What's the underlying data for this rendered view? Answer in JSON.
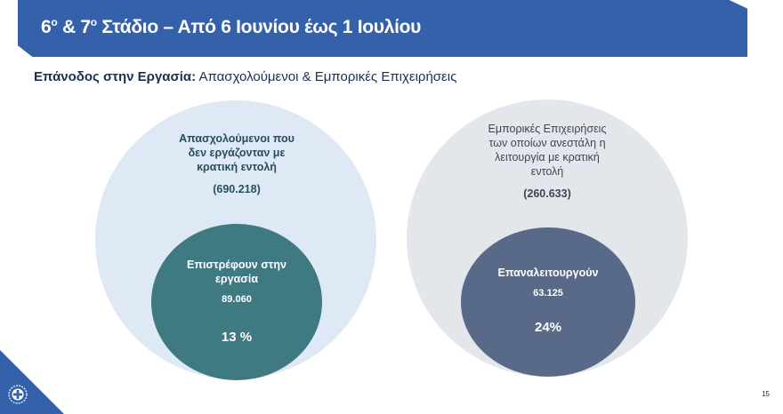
{
  "header": {
    "title_prefix_1": "6",
    "sup_1": "ο",
    "title_mid": " & 7",
    "sup_2": "ο",
    "title_rest": " Στάδιο – Από 6 Ιουνίου έως 1 Ιουλίου"
  },
  "subtitle": {
    "bold": "Επάνοδος στην Εργασία:",
    "rest": " Απασχολούμενοι & Εμπορικές Επιχειρήσεις"
  },
  "left": {
    "outer_lines": [
      "Απασχολούμενοι που",
      "δεν εργάζονταν με",
      "κρατική εντολή"
    ],
    "outer_value": "(690.218)",
    "inner_lines": [
      "Επιστρέφουν στην",
      "εργασία"
    ],
    "inner_value": "89.060",
    "inner_percent": "13 %"
  },
  "right": {
    "outer_lines": [
      "Εμπορικές Επιχειρήσεις",
      "των οποίων ανεστάλη η",
      "λειτουργία με κρατική",
      "εντολή"
    ],
    "outer_value": "(260.633)",
    "inner_lines": [
      "Επαναλειτουργούν"
    ],
    "inner_value": "63.125",
    "inner_percent": "24%"
  },
  "page_number": "15",
  "colors": {
    "brand": "#3561ab",
    "left_outer": "#dfe9f5",
    "right_outer": "#e3e7ec",
    "left_inner": "#3f7a82",
    "right_inner": "#586a88"
  }
}
